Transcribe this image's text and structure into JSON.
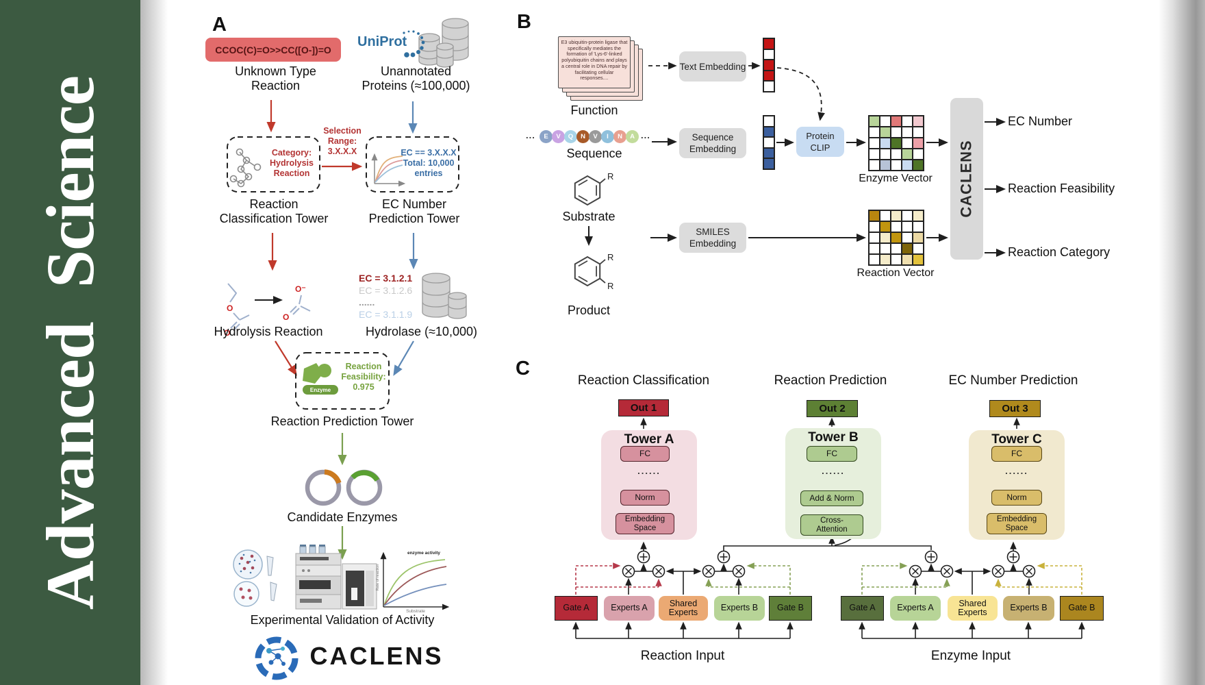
{
  "banner": {
    "title": "Advanced  Science",
    "bg": "#3c5a41"
  },
  "panelA": {
    "label": "A",
    "smiles": "CCOC(C)=O>>CC([O-])=O",
    "unknown": [
      "Unknown Type",
      "Reaction"
    ],
    "uniprot": "UniProt",
    "unannotated": [
      "Unannotated",
      "Proteins (≈100,000)"
    ],
    "selection": [
      "Selection",
      "Range:",
      "3.X.X.X"
    ],
    "category": [
      "Category:",
      "Hydrolysis",
      "Reaction"
    ],
    "ec_filter": [
      "EC == 3.X.X.X",
      "Total: 10,000",
      "entries"
    ],
    "tower1": [
      "Reaction",
      "Classification Tower"
    ],
    "tower2": [
      "EC Number",
      "Prediction Tower"
    ],
    "hydrolysis": "Hydrolysis Reaction",
    "atom_o": "O",
    "atom_o_minus": "O⁻",
    "ec_list": [
      {
        "text": "EC = 3.1.2.1",
        "color": "#9c2121"
      },
      {
        "text": "EC = 3.1.2.6",
        "color": "#c8c8c8"
      },
      {
        "text": "......",
        "color": "#9a9a9a"
      },
      {
        "text": "EC = 3.1.1.9",
        "color": "#b9cfe6"
      }
    ],
    "hydrolase": "Hydrolase (≈10,000)",
    "enzyme_badge": "Enzyme",
    "feasibility": "Reaction Feasibility: 0.975",
    "tower3": "Reaction Prediction Tower",
    "candidates": "Candidate Enzymes",
    "activity_plot": {
      "annotation": "enzyme activity",
      "ylabel": "Rate of reaction",
      "xlabel": "Substrate"
    },
    "validation": "Experimental Validation of Activity",
    "logo_text": "CACLENS"
  },
  "panelB": {
    "label": "B",
    "function_card": "E3 ubiquitin-protein ligase that specifically mediates the formation of 'Lys-6'-linked polyubiquitin chains and plays a central role in DNA repair by facilitating cellular responses....",
    "function_label": "Function",
    "ellipsis": "...",
    "residues": [
      {
        "letter": "E",
        "color": "#8ba3c7"
      },
      {
        "letter": "V",
        "color": "#c9a3e3"
      },
      {
        "letter": "Q",
        "color": "#a8d4e8"
      },
      {
        "letter": "N",
        "color": "#a85a28"
      },
      {
        "letter": "V",
        "color": "#9a9a9a"
      },
      {
        "letter": "I",
        "color": "#8fc0dc"
      },
      {
        "letter": "N",
        "color": "#e8a090"
      },
      {
        "letter": "A",
        "color": "#c2dc9c"
      }
    ],
    "sequence_label": "Sequence",
    "substrate_label": "Substrate",
    "product_label": "Product",
    "r_label": "R",
    "text_embedding": "Text Embedding",
    "sequence_embedding": "Sequence Embedding",
    "smiles_embedding": "SMILES Embedding",
    "protein_clip": "Protein CLIP",
    "text_vector": [
      "#c41414",
      "#ffffff",
      "#c41414",
      "#c41414",
      "#ffffff"
    ],
    "seq_vector": [
      "#ffffff",
      "#3c5f9e",
      "#ffffff",
      "#3c5f9e",
      "#3c5f9e"
    ],
    "enzyme_matrix": [
      [
        "#b8d49a",
        "#ffffff",
        "#e07878",
        "#ffffff",
        "#f2c9cf"
      ],
      [
        "#ffffff",
        "#b8d49a",
        "#ffffff",
        "#ffffff",
        "#ffffff"
      ],
      [
        "#ffffff",
        "#c9dbf1",
        "#4e7426",
        "#ffffff",
        "#eda0a8"
      ],
      [
        "#ffffff",
        "#ffffff",
        "#ffffff",
        "#b8d49a",
        "#ffffff"
      ],
      [
        "#ffffff",
        "#b7c3d7",
        "#ffffff",
        "#c9dbf1",
        "#4e7426"
      ]
    ],
    "reaction_matrix": [
      [
        "#b8860f",
        "#ffffff",
        "#f5ecca",
        "#ffffff",
        "#f5ecca"
      ],
      [
        "#ffffff",
        "#c1950f",
        "#ffffff",
        "#ffffff",
        "#ffffff"
      ],
      [
        "#ffffff",
        "#f5ecca",
        "#c1950f",
        "#ffffff",
        "#ecd9a4"
      ],
      [
        "#ffffff",
        "#ffffff",
        "#ffffff",
        "#7e650a",
        "#ffffff"
      ],
      [
        "#ffffff",
        "#f5ecca",
        "#ffffff",
        "#f0e0b0",
        "#e3c23c"
      ]
    ],
    "enzyme_vector_label": "Enzyme Vector",
    "reaction_vector_label": "Reaction Vector",
    "caclens_label": "CACLENS",
    "outputs": [
      "EC Number",
      "Reaction Feasibility",
      "Reaction Category"
    ]
  },
  "panelC": {
    "label": "C",
    "headings": [
      "Reaction Classification",
      "Reaction Prediction",
      "EC Number Prediction"
    ],
    "outs": [
      {
        "label": "Out 1",
        "bg": "#b52a38"
      },
      {
        "label": "Out 2",
        "bg": "#5d8034"
      },
      {
        "label": "Out 3",
        "bg": "#b08a1d"
      }
    ],
    "towers": [
      {
        "title": "Tower A",
        "fc": "FC",
        "dots": "......",
        "mid": "Norm",
        "bottom": [
          "Embedding",
          "Space"
        ]
      },
      {
        "title": "Tower B",
        "fc": "FC",
        "dots": "......",
        "mid": "Add & Norm",
        "bottom": [
          "Cross-",
          "Attention"
        ]
      },
      {
        "title": "Tower C",
        "fc": "FC",
        "dots": "......",
        "mid": "Norm",
        "bottom": [
          "Embedding",
          "Space"
        ]
      }
    ],
    "groups": [
      {
        "input": "Reaction Input",
        "boxes": [
          {
            "label": "Gate A",
            "bg": "#b52a38",
            "gate": true
          },
          {
            "label": "Experts A",
            "bg": "#d9a2ac"
          },
          {
            "label": "Shared Experts",
            "bg": "#eba973"
          },
          {
            "label": "Experts B",
            "bg": "#b7d497"
          },
          {
            "label": "Gate B",
            "bg": "#5f7f39",
            "gate": true
          }
        ]
      },
      {
        "input": "Enzyme Input",
        "boxes": [
          {
            "label": "Gate A",
            "bg": "#586f3d",
            "gate": true
          },
          {
            "label": "Experts A",
            "bg": "#b7d497"
          },
          {
            "label": "Shared Experts",
            "bg": "#f8e494"
          },
          {
            "label": "Experts B",
            "bg": "#c7b172"
          },
          {
            "label": "Gate B",
            "bg": "#ab861f",
            "gate": true
          }
        ]
      }
    ]
  }
}
